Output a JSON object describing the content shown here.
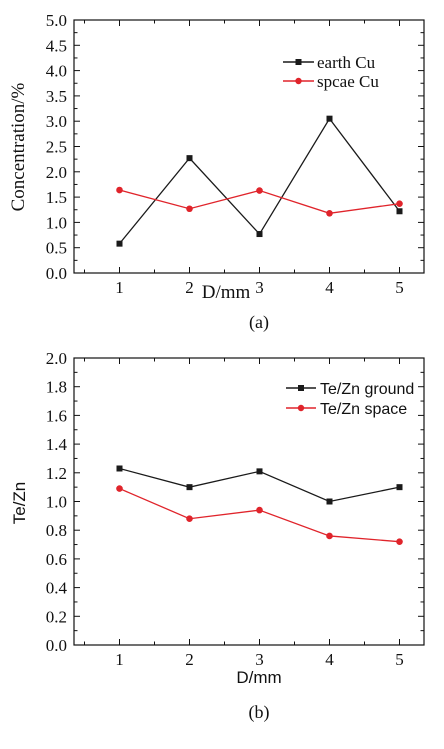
{
  "chart_data": [
    {
      "panel": "(a)",
      "type": "line",
      "xlabel": "D/mm",
      "ylabel": "Concentration/%",
      "x": [
        1,
        2,
        3,
        4,
        5
      ],
      "x_ticks": [
        "1",
        "2",
        "3",
        "4",
        "5"
      ],
      "y_ticks": [
        "0.0",
        "0.5",
        "1.0",
        "1.5",
        "2.0",
        "2.5",
        "3.0",
        "3.5",
        "4.0",
        "4.5",
        "5.0"
      ],
      "xlim": [
        0.35,
        5.35
      ],
      "ylim": [
        0,
        5
      ],
      "grid": false,
      "legend_position": "top-right",
      "series": [
        {
          "name": "earth Cu",
          "color": "#1a1a1a",
          "marker": "square",
          "values": [
            0.58,
            2.27,
            0.77,
            3.05,
            1.22
          ]
        },
        {
          "name": "spcae Cu",
          "color": "#e0242b",
          "marker": "circle",
          "values": [
            1.64,
            1.27,
            1.63,
            1.18,
            1.37
          ]
        }
      ]
    },
    {
      "panel": "(b)",
      "type": "line",
      "xlabel": "D/mm",
      "ylabel": "Te/Zn",
      "x": [
        1,
        2,
        3,
        4,
        5
      ],
      "x_ticks": [
        "1",
        "2",
        "3",
        "4",
        "5"
      ],
      "y_ticks": [
        "0.0",
        "0.2",
        "0.4",
        "0.6",
        "0.8",
        "1.0",
        "1.2",
        "1.4",
        "1.6",
        "1.8",
        "2.0"
      ],
      "xlim": [
        0.35,
        5.35
      ],
      "ylim": [
        0,
        2
      ],
      "grid": false,
      "legend_position": "top-right",
      "series": [
        {
          "name": "Te/Zn ground",
          "color": "#1a1a1a",
          "marker": "square",
          "values": [
            1.23,
            1.1,
            1.21,
            1.0,
            1.1
          ]
        },
        {
          "name": "Te/Zn space",
          "color": "#e0242b",
          "marker": "circle",
          "values": [
            1.09,
            0.88,
            0.94,
            0.76,
            0.72
          ]
        }
      ]
    }
  ]
}
